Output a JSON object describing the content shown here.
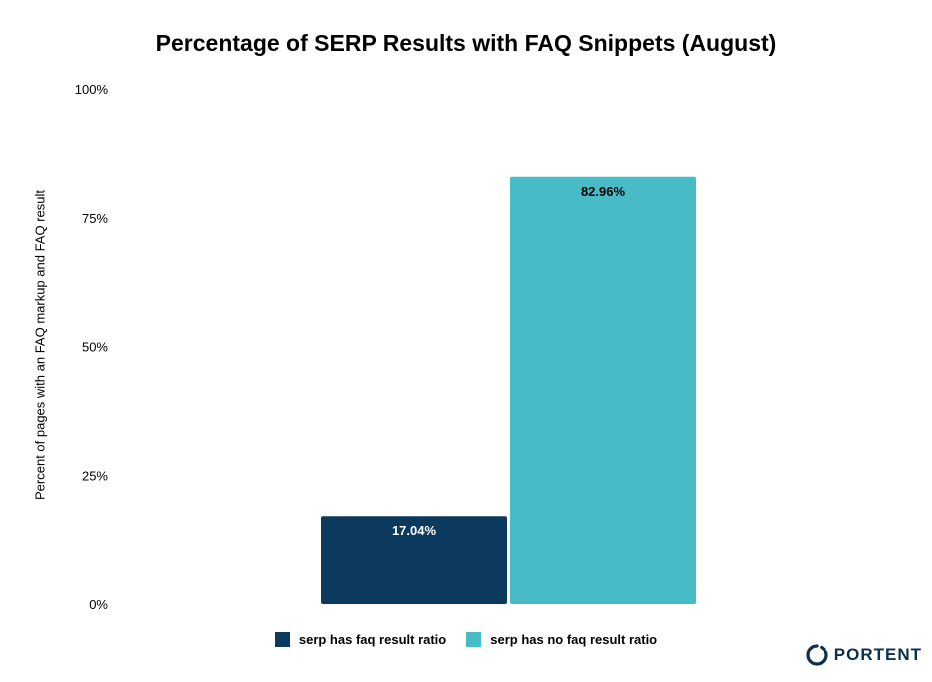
{
  "chart_data": {
    "type": "bar",
    "title": "Percentage of SERP Results with FAQ Snippets (August)",
    "xlabel": "",
    "ylabel": "Percent of pages with an FAQ markup and FAQ result",
    "ylim": [
      0,
      100
    ],
    "yticks": [
      "0%",
      "25%",
      "50%",
      "75%",
      "100%"
    ],
    "ytick_values": [
      0,
      25,
      50,
      75,
      100
    ],
    "grid": false,
    "legend_position": "bottom",
    "series": [
      {
        "name": "serp has faq result ratio",
        "value": 17.04,
        "label": "17.04%",
        "color": "#0b3a5e",
        "label_color": "#ffffff"
      },
      {
        "name": "serp has no faq result ratio",
        "value": 82.96,
        "label": "82.96%",
        "color": "#47bcc6",
        "label_color": "#000000"
      }
    ]
  },
  "brand": {
    "name": "PORTENT",
    "color": "#0b2f4d"
  }
}
